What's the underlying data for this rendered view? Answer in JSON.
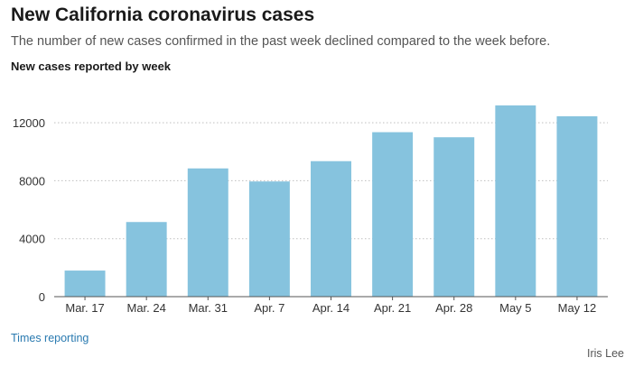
{
  "header": {
    "title": "New California coronavirus cases",
    "subtitle": "The number of new cases confirmed in the past week declined compared to the week before."
  },
  "footer": {
    "source": "Times reporting",
    "credit": "Iris Lee"
  },
  "colors": {
    "bar": "#86c3de",
    "grid": "#bfbfbf",
    "axis": "#555555"
  },
  "chart_data": {
    "type": "bar",
    "title": "New cases reported by week",
    "xlabel": "",
    "ylabel": "",
    "categories": [
      "Mar. 17",
      "Mar. 24",
      "Mar. 31",
      "Apr. 7",
      "Apr. 14",
      "Apr. 21",
      "Apr. 28",
      "May 5",
      "May 12"
    ],
    "values": [
      1800,
      5150,
      8850,
      7950,
      9350,
      11350,
      11000,
      13200,
      12450
    ],
    "ylim": [
      0,
      14000
    ],
    "yticks": [
      0,
      4000,
      8000,
      12000
    ],
    "grid": true,
    "legend": "none"
  }
}
